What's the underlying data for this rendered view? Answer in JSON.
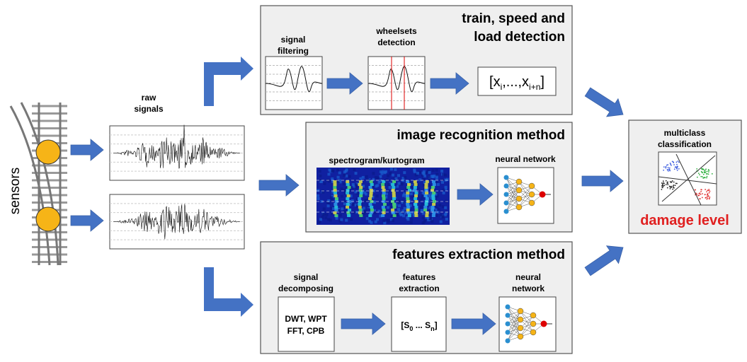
{
  "sensors": {
    "label": "sensors"
  },
  "raw_signals": {
    "label": [
      "raw",
      "signals"
    ]
  },
  "detection_panel": {
    "title": [
      "train, speed and",
      "load detection"
    ],
    "steps": [
      {
        "label": [
          "signal",
          "filtering"
        ]
      },
      {
        "label": [
          "wheelsets",
          "detection"
        ]
      }
    ],
    "output": [
      "[x",
      "i",
      ",...,x",
      "i+n",
      "]"
    ]
  },
  "image_panel": {
    "title": "image recognition method",
    "steps": [
      {
        "label": [
          "spectrogram/kurtogram"
        ]
      },
      {
        "label": [
          "neural network"
        ]
      }
    ]
  },
  "features_panel": {
    "title": "features extraction method",
    "steps": [
      {
        "label": [
          "signal",
          "decomposing"
        ],
        "box": [
          "DWT, WPT",
          "FFT, CPB"
        ]
      },
      {
        "label": [
          "features",
          "extraction"
        ],
        "box": [
          "[S",
          "0",
          " ... S",
          "n",
          "]"
        ]
      },
      {
        "label": [
          "neural",
          "network"
        ]
      }
    ]
  },
  "classification": {
    "label": [
      "multiclass",
      "classification"
    ],
    "result": "damage level"
  }
}
